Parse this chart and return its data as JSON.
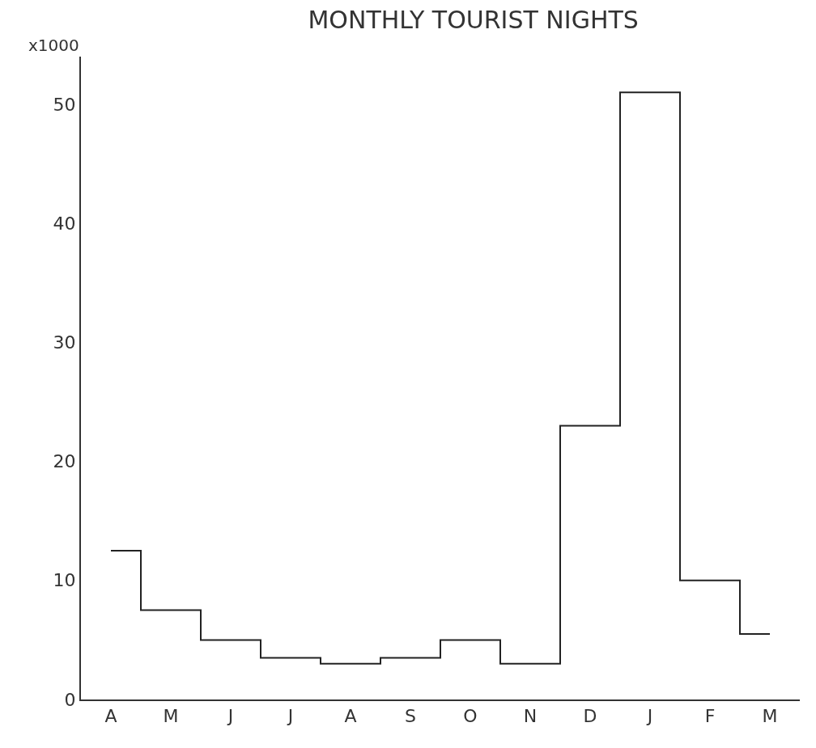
{
  "chart_data": {
    "type": "step",
    "title": "MONTHLY TOURIST NIGHTS",
    "ylabel": "x1000",
    "categories": [
      "A",
      "M",
      "J",
      "J",
      "A",
      "S",
      "O",
      "N",
      "D",
      "J",
      "F",
      "M"
    ],
    "series": [
      {
        "color": "#222222",
        "values": [
          12.5,
          7.5,
          5,
          3.5,
          3,
          3.5,
          5,
          3,
          23,
          51,
          10,
          5.5
        ]
      }
    ],
    "ylim": [
      0,
      54
    ],
    "yticks": [
      0,
      10,
      20,
      30,
      40,
      50
    ],
    "line_style": "solid"
  }
}
